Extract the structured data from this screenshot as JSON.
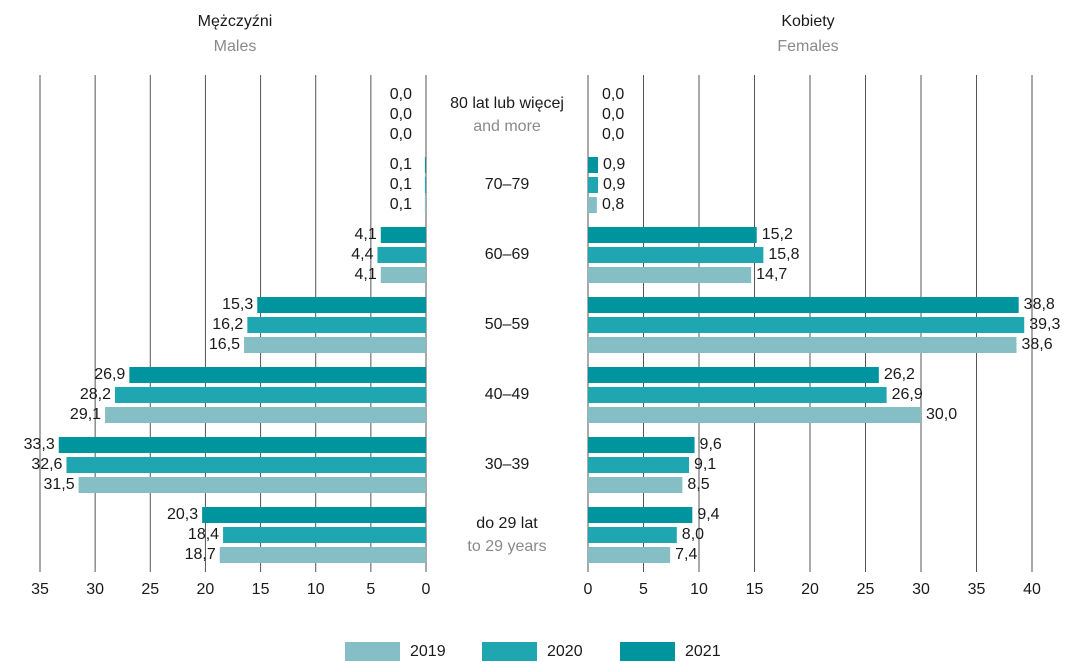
{
  "chart_data": {
    "type": "bar",
    "orientation": "horizontal",
    "categories": [
      "80 lat lub więcej",
      "70–79",
      "60–69",
      "50–59",
      "40–49",
      "30–39",
      "do 29 lat"
    ],
    "category_subtitles": [
      "and more",
      null,
      null,
      null,
      null,
      null,
      "to 29 years"
    ],
    "legend": [
      {
        "name": "2019",
        "color": "#86bec5"
      },
      {
        "name": "2020",
        "color": "#1fa6b0"
      },
      {
        "name": "2021",
        "color": "#00959e"
      }
    ],
    "grid": true,
    "panels": [
      {
        "title": "Mężczyźni",
        "subtitle": "Males",
        "xlim": [
          35,
          0
        ],
        "xticks": [
          35,
          30,
          25,
          20,
          15,
          10,
          5,
          0
        ],
        "series": [
          {
            "values": [
              0.0,
              0.1,
              4.1,
              16.5,
              29.1,
              31.5,
              18.7
            ],
            "value_labels": [
              "0,0",
              "0,1",
              "4,1",
              "16,5",
              "29,1",
              "31,5",
              "18,7"
            ]
          },
          {
            "values": [
              0.0,
              0.1,
              4.4,
              16.2,
              28.2,
              32.6,
              18.4
            ],
            "value_labels": [
              "0,0",
              "0,1",
              "4,4",
              "16,2",
              "28,2",
              "32,6",
              "18,4"
            ]
          },
          {
            "values": [
              0.0,
              0.1,
              4.1,
              15.3,
              26.9,
              33.3,
              20.3
            ],
            "value_labels": [
              "0,0",
              "0,1",
              "4,1",
              "15,3",
              "26,9",
              "33,3",
              "20,3"
            ]
          }
        ]
      },
      {
        "title": "Kobiety",
        "subtitle": "Females",
        "xlim": [
          0,
          40
        ],
        "xticks": [
          0,
          5,
          10,
          15,
          20,
          25,
          30,
          35,
          40
        ],
        "series": [
          {
            "values": [
              0.0,
              0.8,
              14.7,
              38.6,
              30.0,
              8.5,
              7.4
            ],
            "value_labels": [
              "0,0",
              "0,8",
              "14,7",
              "38,6",
              "30,0",
              "8,5",
              "7,4"
            ]
          },
          {
            "values": [
              0.0,
              0.9,
              15.8,
              39.3,
              26.9,
              9.1,
              8.0
            ],
            "value_labels": [
              "0,0",
              "0,9",
              "15,8",
              "39,3",
              "26,9",
              "9,1",
              "8,0"
            ]
          },
          {
            "values": [
              0.0,
              0.9,
              15.2,
              38.8,
              26.2,
              9.6,
              9.4
            ],
            "value_labels": [
              "0,0",
              "0,9",
              "15,2",
              "38,8",
              "26,2",
              "9,6",
              "9,4"
            ]
          }
        ]
      }
    ]
  }
}
